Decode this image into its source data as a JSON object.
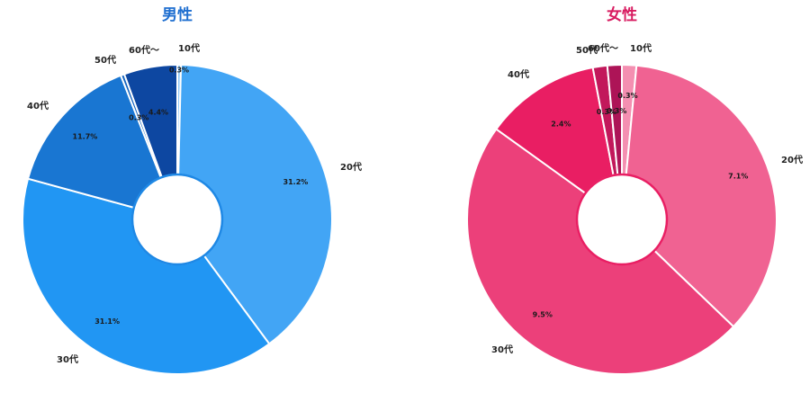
{
  "chart_data": [
    {
      "type": "pie",
      "title": "男性",
      "title_color": "#1f6fd0",
      "categories": [
        "10代",
        "20代",
        "30代",
        "40代",
        "50代",
        "60代〜"
      ],
      "values": [
        0.3,
        31.2,
        31.1,
        11.7,
        0.3,
        4.4
      ],
      "labels": [
        "0.3%",
        "31.2%",
        "31.1%",
        "11.7%",
        "0.3%",
        "4.4%"
      ],
      "colors": [
        "#90caf9",
        "#42a5f5",
        "#2196f3",
        "#1976d2",
        "#1565c0",
        "#0d47a1"
      ],
      "inner_ring_color": "#1e88e5",
      "legend": "none"
    },
    {
      "type": "pie",
      "title": "女性",
      "title_color": "#d81b60",
      "categories": [
        "10代",
        "20代",
        "30代",
        "40代",
        "50代",
        "60代〜"
      ],
      "values": [
        0.3,
        7.1,
        9.5,
        2.4,
        0.3,
        0.3
      ],
      "labels": [
        "0.3%",
        "7.1%",
        "9.5%",
        "2.4%",
        "0.3%",
        "0.3%"
      ],
      "colors": [
        "#f48fb1",
        "#f06292",
        "#ec407a",
        "#e91e63",
        "#c2185b",
        "#ad1457"
      ],
      "inner_ring_color": "#e91e63",
      "legend": "none"
    }
  ]
}
